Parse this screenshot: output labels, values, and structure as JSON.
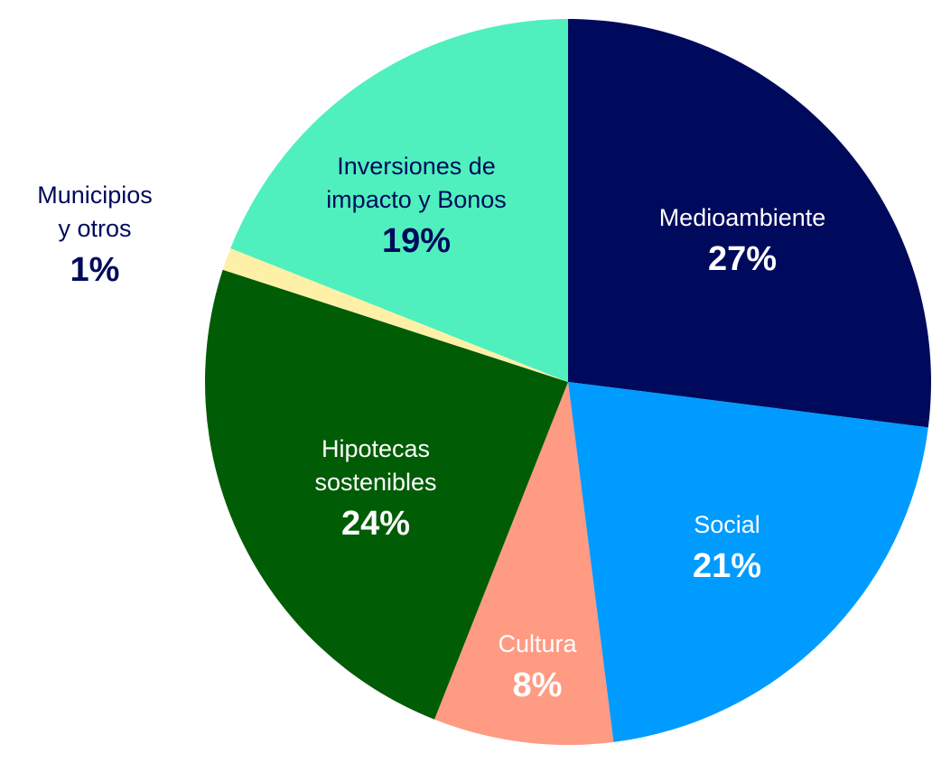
{
  "chart_data": {
    "type": "pie",
    "title": "",
    "slices": [
      {
        "label": [
          "Medioambiente"
        ],
        "value_text": "27%",
        "value": 27,
        "color": "#000a5c",
        "text_color": "#ffffff"
      },
      {
        "label": [
          "Social"
        ],
        "value_text": "21%",
        "value": 21,
        "color": "#009bff",
        "text_color": "#ffffff"
      },
      {
        "label": [
          "Cultura"
        ],
        "value_text": "8%",
        "value": 8,
        "color": "#ff9a83",
        "text_color": "#ffffff"
      },
      {
        "label": [
          "Hipotecas",
          "sostenibles"
        ],
        "value_text": "24%",
        "value": 24,
        "color": "#005c05",
        "text_color": "#ffffff"
      },
      {
        "label": [
          "Municipios",
          "y otros"
        ],
        "value_text": "1%",
        "value": 1,
        "color": "#fff0a8",
        "text_color": "#000a5c"
      },
      {
        "label": [
          "Inversiones de",
          "impacto y Bonos"
        ],
        "value_text": "19%",
        "value": 19,
        "color": "#4ff0bd",
        "text_color": "#000a5c"
      }
    ]
  }
}
